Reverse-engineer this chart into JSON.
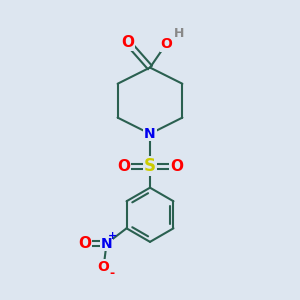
{
  "bg_color": "#dde6f0",
  "bond_color": "#2a6050",
  "bond_width": 1.5,
  "colors": {
    "O": "#ff0000",
    "N": "#0000ee",
    "S": "#cccc00",
    "H": "#888888"
  },
  "font_size": 9,
  "fig_size": [
    3.0,
    3.0
  ],
  "dpi": 100
}
